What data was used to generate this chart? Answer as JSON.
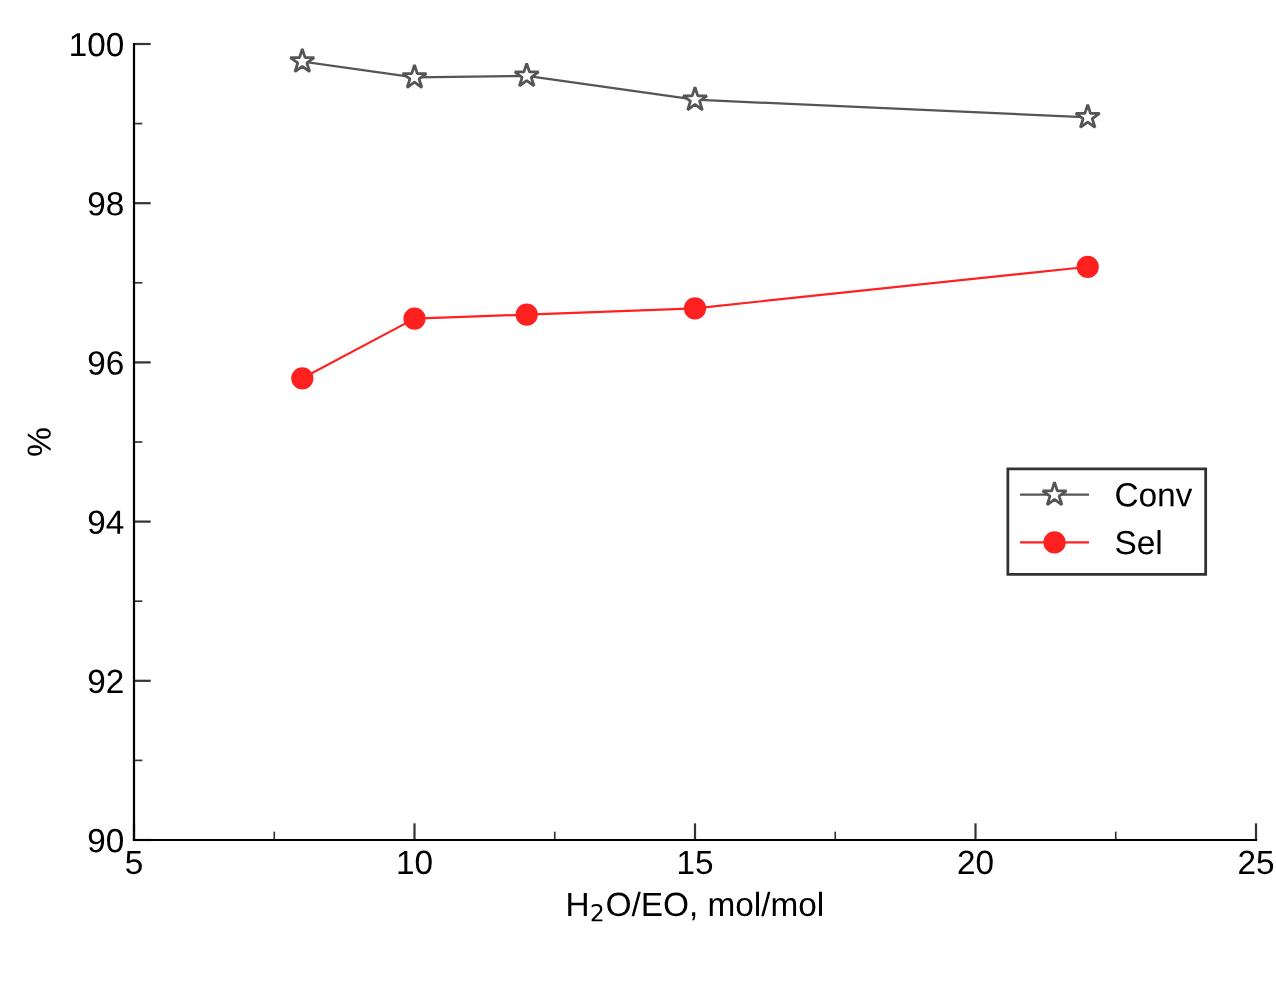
{
  "chart_data": {
    "type": "line",
    "xlabel": "H$_{2}$O/EO, mol/mol",
    "ylabel": "%",
    "x": [
      8,
      10,
      12,
      15,
      22
    ],
    "series": [
      {
        "name": "Conv",
        "color": "#555555",
        "marker": "star",
        "values": [
          99.78,
          99.58,
          99.6,
          99.3,
          99.08
        ]
      },
      {
        "name": "Sel",
        "color": "#ff2020",
        "marker": "circle",
        "values": [
          95.8,
          96.55,
          96.6,
          96.68,
          97.2
        ]
      }
    ],
    "xlim": [
      5,
      25
    ],
    "xticks": [
      5,
      10,
      15,
      20,
      25
    ],
    "ylim": [
      90,
      100
    ],
    "yticks": [
      90,
      92,
      94,
      96,
      98,
      100
    ],
    "grid": false,
    "legend": "right",
    "line_style": "solid"
  }
}
